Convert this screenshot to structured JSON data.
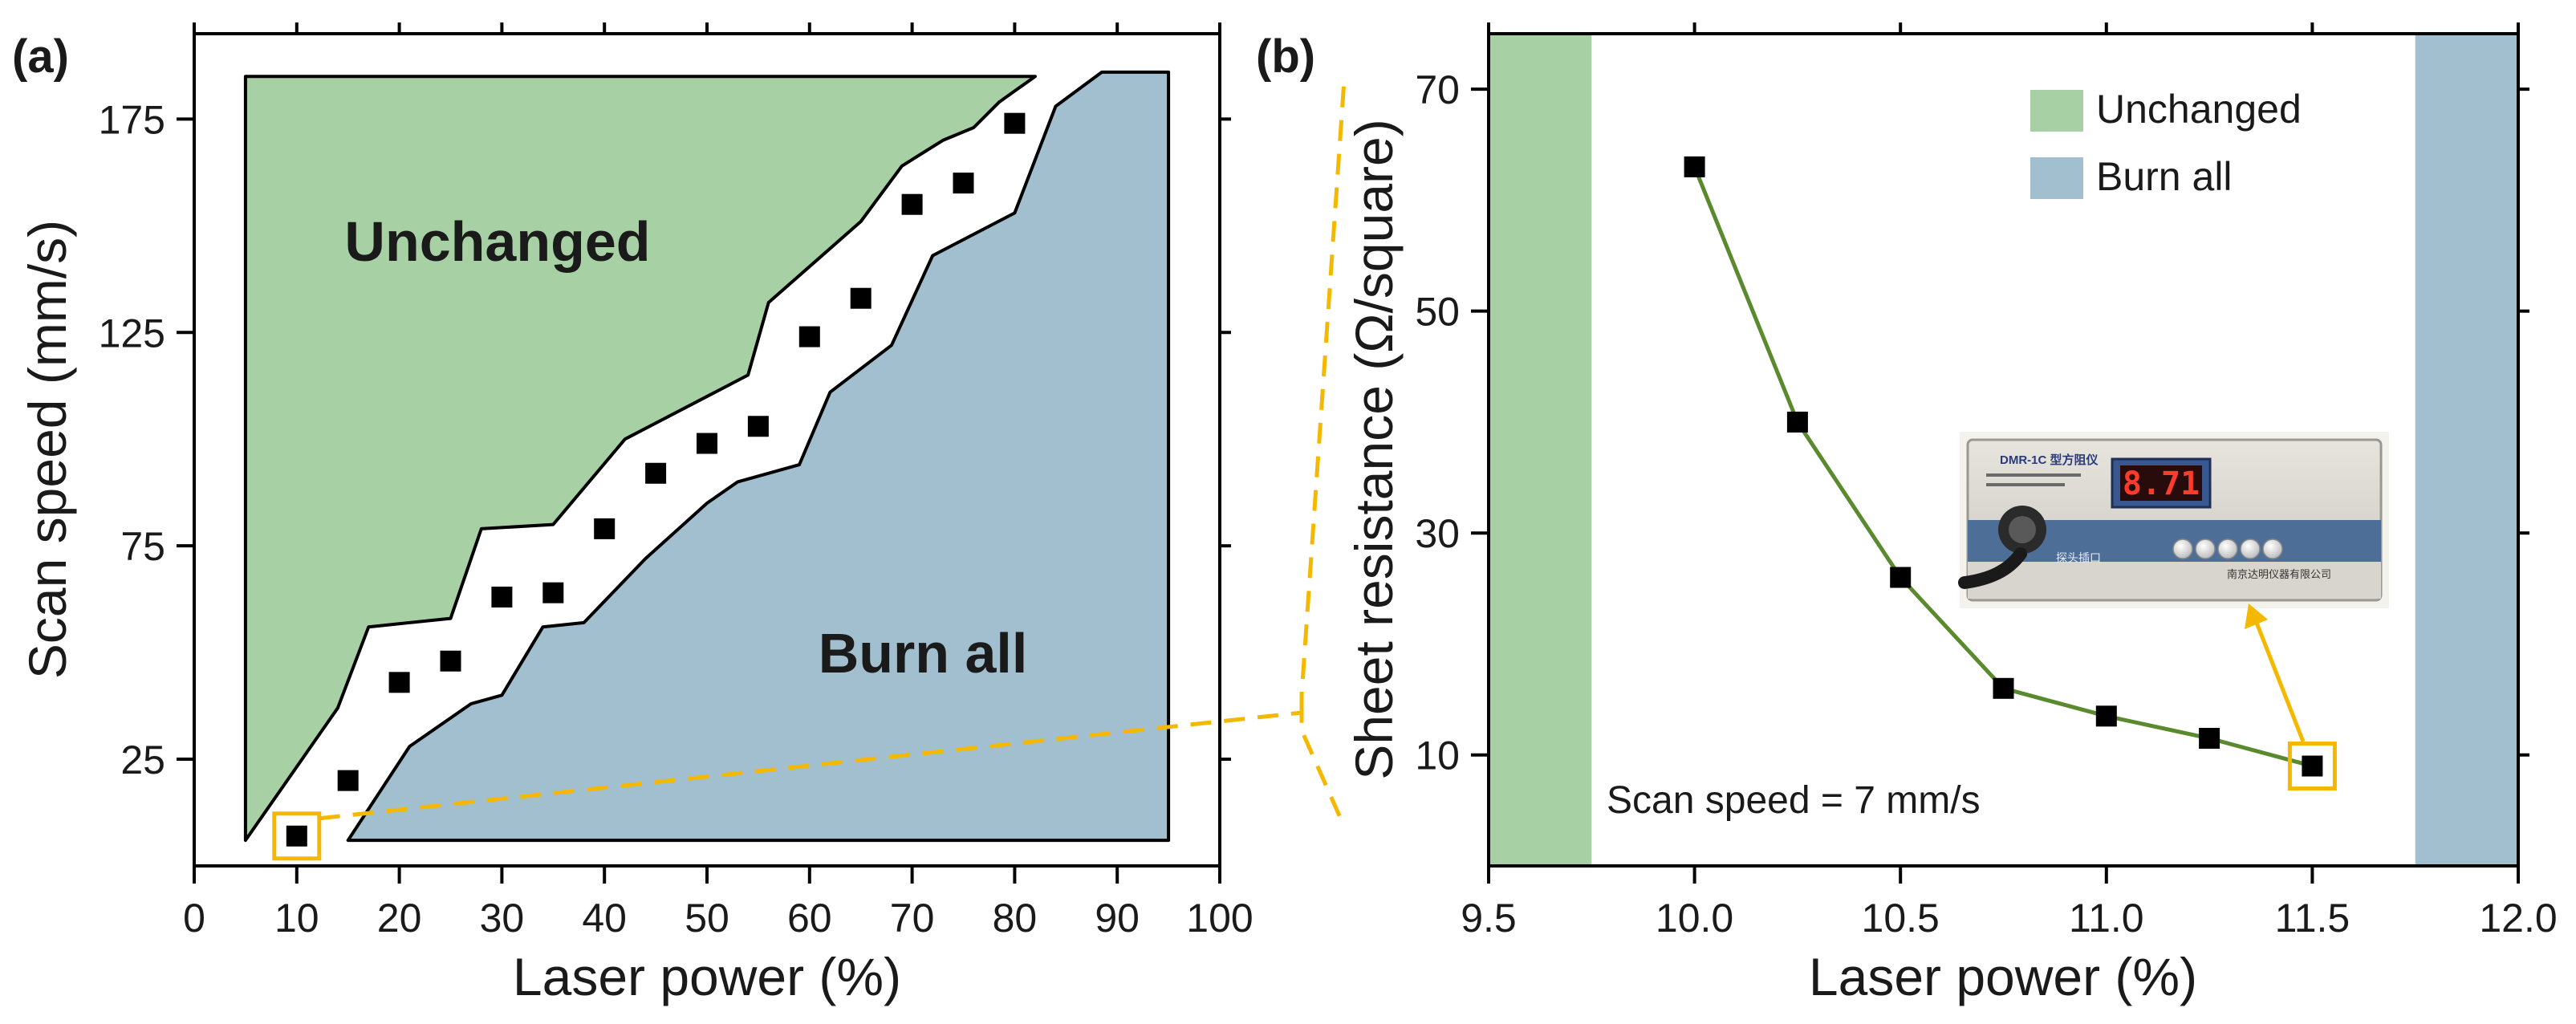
{
  "colors": {
    "unchanged": "#a8d0a5",
    "burn_all": "#a2bfd0",
    "line": "#5a8a2e",
    "marker": "#000000",
    "highlight": "#f5b800"
  },
  "chart_data": [
    {
      "type": "scatter",
      "panel_label": "(a)",
      "xlabel": "Laser power (%)",
      "ylabel": "Scan speed (mm/s)",
      "xlim": [
        0,
        100
      ],
      "ylim": [
        0,
        195
      ],
      "xticks": [
        0,
        10,
        20,
        30,
        40,
        50,
        60,
        70,
        80,
        90,
        100
      ],
      "yticks": [
        25,
        75,
        125,
        175
      ],
      "region_labels": {
        "unchanged": "Unchanged",
        "burn_all": "Burn all"
      },
      "unchanged_region": [
        [
          5,
          185
        ],
        [
          82,
          185
        ],
        [
          78.5,
          179
        ],
        [
          76,
          173
        ],
        [
          73,
          170
        ],
        [
          69,
          164
        ],
        [
          65,
          151
        ],
        [
          56,
          132
        ],
        [
          54,
          115
        ],
        [
          42,
          100
        ],
        [
          35,
          80
        ],
        [
          28,
          79
        ],
        [
          25,
          58
        ],
        [
          17,
          56
        ],
        [
          14,
          37
        ],
        [
          5,
          6
        ]
      ],
      "burn_all_region": [
        [
          15,
          6
        ],
        [
          95,
          6
        ],
        [
          95,
          186
        ],
        [
          88.5,
          186
        ],
        [
          84,
          178
        ],
        [
          80,
          153
        ],
        [
          72,
          143
        ],
        [
          68,
          122
        ],
        [
          62,
          111
        ],
        [
          59,
          94
        ],
        [
          53,
          90
        ],
        [
          50,
          85
        ],
        [
          44,
          72
        ],
        [
          38,
          57
        ],
        [
          34,
          56
        ],
        [
          30,
          40
        ],
        [
          27,
          38
        ],
        [
          21,
          28
        ]
      ],
      "x": [
        10,
        15,
        20,
        25,
        30,
        35,
        40,
        45,
        50,
        55,
        60,
        65,
        70,
        75,
        80
      ],
      "y": [
        7,
        20,
        43,
        48,
        63,
        64,
        79,
        92,
        99,
        103,
        124,
        133,
        155,
        160,
        174
      ],
      "highlight_point": {
        "x": 10,
        "y": 7
      }
    },
    {
      "type": "line",
      "panel_label": "(b)",
      "xlabel": "Laser power (%)",
      "ylabel": "Sheet resistance (Ω/square)",
      "xlim": [
        9.5,
        12.0
      ],
      "ylim": [
        0,
        75
      ],
      "xticks": [
        9.5,
        10.0,
        10.5,
        11.0,
        11.5,
        12.0
      ],
      "xtick_labels": [
        "9.5",
        "10.0",
        "10.5",
        "11.0",
        "11.5",
        "12.0"
      ],
      "yticks": [
        10,
        30,
        50,
        70
      ],
      "shaded_regions": [
        {
          "name": "Unchanged",
          "x_from": 9.5,
          "x_to": 9.75
        },
        {
          "name": "Burn all",
          "x_from": 11.75,
          "x_to": 12.0
        }
      ],
      "legend": [
        {
          "label": "Unchanged",
          "key": "unchanged"
        },
        {
          "label": "Burn all",
          "key": "burn_all"
        }
      ],
      "legend_position": "top-right",
      "annotation": "Scan speed = 7 mm/s",
      "x": [
        10.0,
        10.25,
        10.5,
        10.75,
        11.0,
        11.25,
        11.5
      ],
      "y": [
        63,
        40,
        26,
        16,
        13.5,
        11.5,
        9
      ],
      "highlight_point": {
        "x": 11.5,
        "y": 9
      },
      "inset_photo": {
        "display_value": "8.71",
        "device_label": "DMR-1C 型方阻仪",
        "panel_text": "探头插口",
        "maker_text": "南京达明仪器有限公司"
      }
    }
  ]
}
